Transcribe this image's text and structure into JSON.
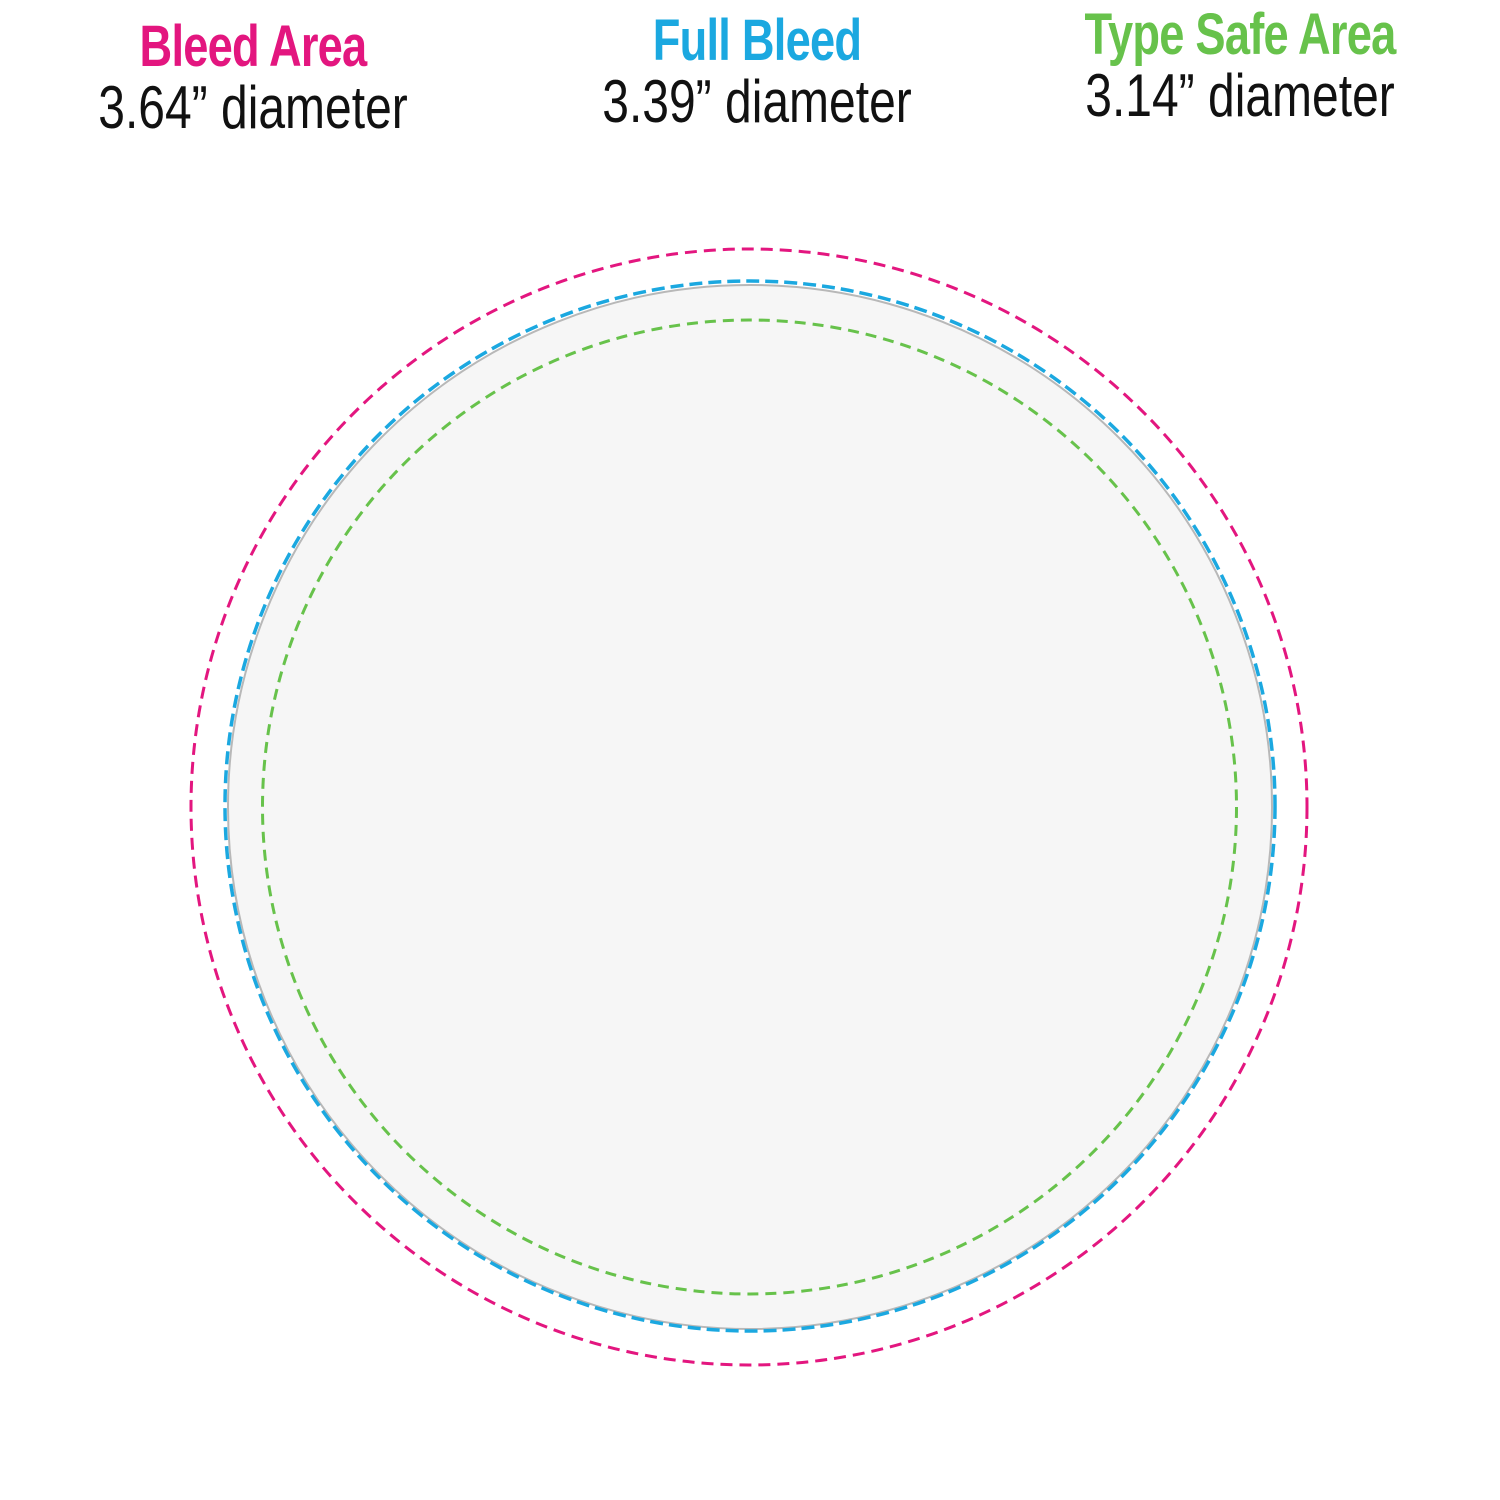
{
  "labels": [
    {
      "title": "Bleed Area",
      "diameter": "3.64” diameter",
      "color": "#e3167f"
    },
    {
      "title": "Full Bleed",
      "diameter": "3.39” diameter",
      "color": "#1ba8e0"
    },
    {
      "title": "Type Safe Area",
      "diameter": "3.14” diameter",
      "color": "#67c24b"
    }
  ],
  "circle_fill": "#f6f6f6",
  "circle_edge": "#b8b8b8"
}
